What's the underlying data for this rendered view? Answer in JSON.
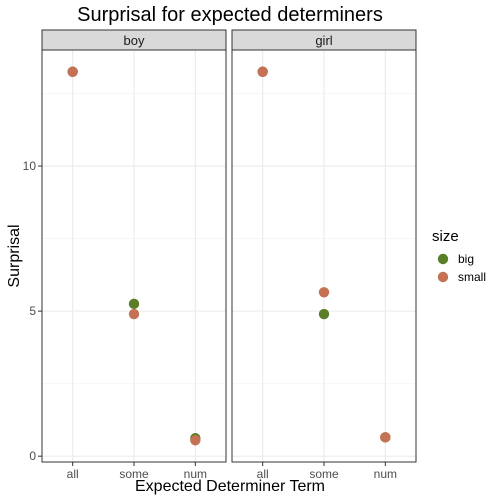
{
  "chart_data": {
    "type": "scatter",
    "title": "Surprisal for expected determiners",
    "xlabel": "Expected Determiner Term",
    "ylabel": "Surprisal",
    "categories": [
      "all",
      "some",
      "num"
    ],
    "ylim": [
      -0.2,
      14.0
    ],
    "yticks": [
      0,
      5,
      10
    ],
    "facets": [
      "boy",
      "girl"
    ],
    "legend": {
      "title": "size",
      "position": "right"
    },
    "grid": true,
    "series": [
      {
        "name": "big",
        "color": "#5a7d28",
        "values": {
          "boy": [
            13.25,
            5.25,
            0.62
          ],
          "girl": [
            13.25,
            4.9,
            0.65
          ]
        }
      },
      {
        "name": "small",
        "color": "#c47253",
        "values": {
          "boy": [
            13.25,
            4.9,
            0.55
          ],
          "girl": [
            13.25,
            5.65,
            0.65
          ]
        }
      }
    ]
  }
}
